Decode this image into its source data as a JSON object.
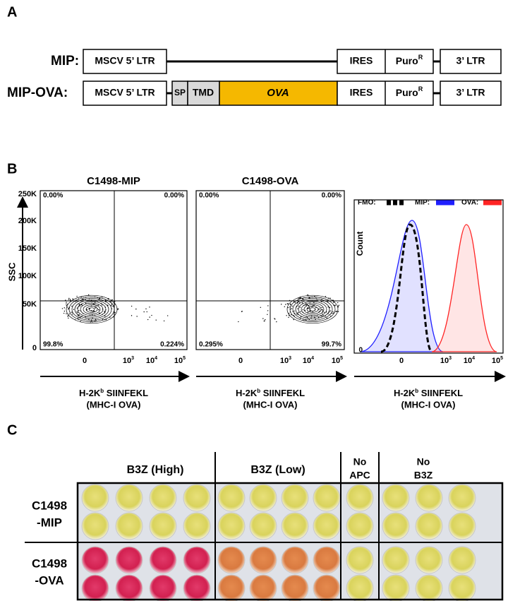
{
  "panel_a": {
    "label": "A",
    "constructs": [
      {
        "name": "MIP:",
        "ltr5": "MSCV 5’ LTR",
        "ires": "IRES",
        "puro": {
          "text": "Puro",
          "sup": "R"
        },
        "ltr3": "3’ LTR"
      },
      {
        "name": "MIP-OVA:",
        "ltr5": "MSCV 5’ LTR",
        "sp": "SP",
        "tmd": "TMD",
        "ova": "OVA",
        "ires": "IRES",
        "puro": {
          "text": "Puro",
          "sup": "R"
        },
        "ltr3": "3’ LTR"
      }
    ]
  },
  "panel_b": {
    "label": "B",
    "dot_plots": [
      {
        "title": "C1498-MIP",
        "quadrants": {
          "upper_left": "0.00%",
          "upper_right": "0.00%",
          "lower_left": "99.8%",
          "lower_right": "0.224%"
        }
      },
      {
        "title": "C1498-OVA",
        "quadrants": {
          "upper_left": "0.00%",
          "upper_right": "0.00%",
          "lower_left": "0.295%",
          "lower_right": "99.7%"
        }
      }
    ],
    "y_axis": {
      "label": "SSC",
      "ticks": [
        "250K",
        "200K",
        "150K",
        "100K",
        "50K",
        "0"
      ]
    },
    "x_axis": {
      "label": {
        "text": "H-2K",
        "sup": "b",
        "rest": " SIINFEKL"
      },
      "label_line2": "(MHC-I OVA)",
      "ticks": [
        {
          "text": "0"
        },
        {
          "text": "10",
          "sup": "3"
        },
        {
          "text": "10",
          "sup": "4"
        },
        {
          "text": "10",
          "sup": "5"
        }
      ]
    },
    "histogram": {
      "legend": [
        {
          "name": "FMO:",
          "color": "#000000"
        },
        {
          "name": "MIP:",
          "color": "#1f1fff"
        },
        {
          "name": "OVA:",
          "color": "#ff2424"
        }
      ],
      "y_label": "Count",
      "y_tick": "0"
    }
  },
  "panel_c": {
    "label": "C",
    "columns": [
      [
        "B3Z (High)"
      ],
      [
        "B3Z (Low)"
      ],
      [
        "No",
        "APC"
      ],
      [
        "No",
        "B3Z"
      ]
    ],
    "rows": [
      [
        "C1498",
        "-MIP"
      ],
      [
        "C1498",
        "-OVA"
      ]
    ]
  }
}
